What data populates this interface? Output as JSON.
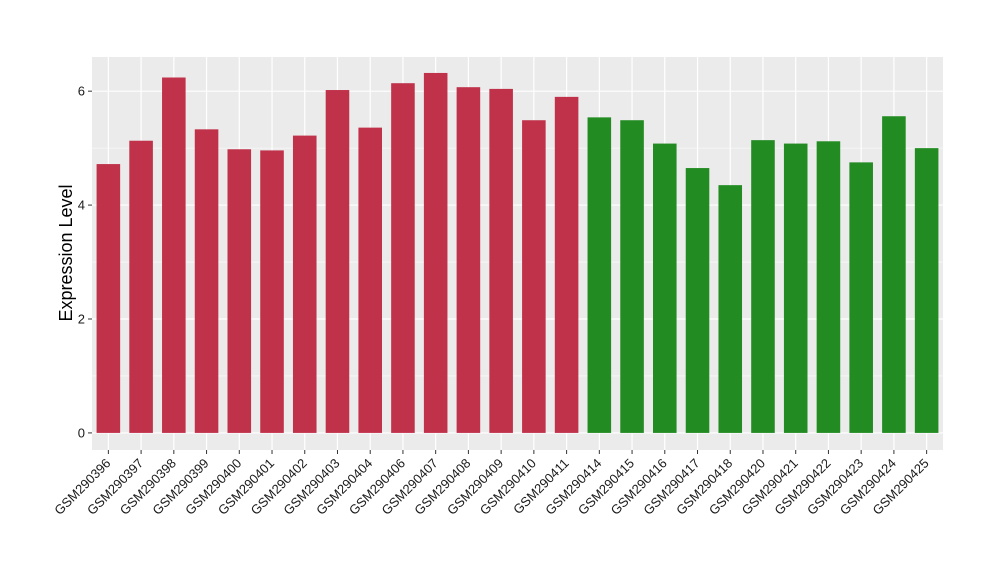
{
  "chart_data": {
    "type": "bar",
    "title": "",
    "xlabel": "",
    "ylabel": "Expression Level",
    "ylim": [
      -0.3,
      6.6
    ],
    "y_ticks": [
      0,
      2,
      4,
      6
    ],
    "y_tick_labels": [
      "0",
      "2",
      "4",
      "6"
    ],
    "grid": true,
    "colors": {
      "group1": "#C0314A",
      "group2": "#228B22",
      "panel_bg": "#EBEBEB",
      "grid": "#FFFFFF"
    },
    "categories": [
      "GSM290396",
      "GSM290397",
      "GSM290398",
      "GSM290399",
      "GSM290400",
      "GSM290401",
      "GSM290402",
      "GSM290403",
      "GSM290404",
      "GSM290406",
      "GSM290407",
      "GSM290408",
      "GSM290409",
      "GSM290410",
      "GSM290411",
      "GSM290414",
      "GSM290415",
      "GSM290416",
      "GSM290417",
      "GSM290418",
      "GSM290420",
      "GSM290421",
      "GSM290422",
      "GSM290423",
      "GSM290424",
      "GSM290425"
    ],
    "values": [
      4.72,
      5.13,
      6.24,
      5.33,
      4.98,
      4.96,
      5.22,
      6.02,
      5.36,
      6.14,
      6.32,
      6.07,
      6.04,
      5.49,
      5.9,
      5.54,
      5.49,
      5.08,
      4.65,
      4.35,
      5.14,
      5.08,
      5.12,
      4.75,
      5.56,
      5.0
    ],
    "groups": [
      1,
      1,
      1,
      1,
      1,
      1,
      1,
      1,
      1,
      1,
      1,
      1,
      1,
      1,
      1,
      2,
      2,
      2,
      2,
      2,
      2,
      2,
      2,
      2,
      2,
      2
    ]
  }
}
